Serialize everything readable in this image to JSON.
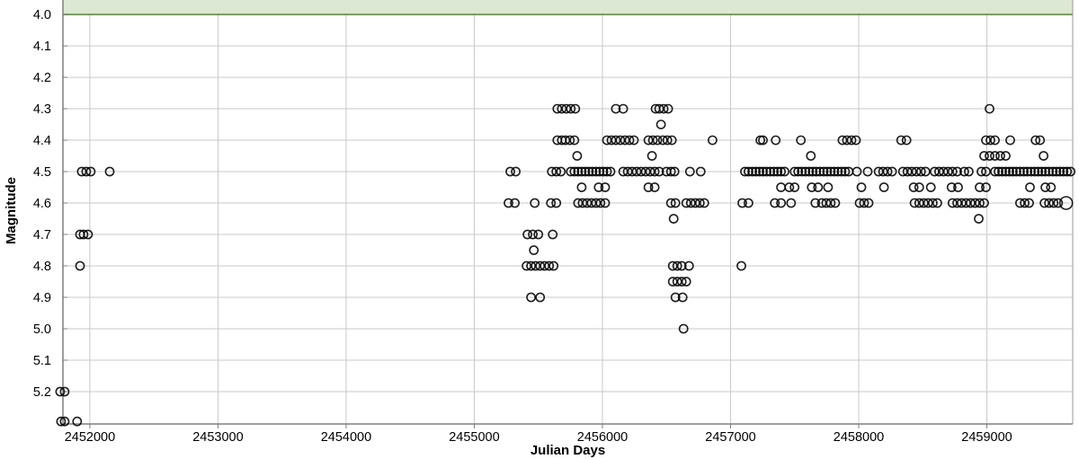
{
  "chart_data": {
    "type": "scatter",
    "title": "",
    "xlabel": "Julian Days",
    "ylabel": "Magnitude",
    "x_ticks": [
      2452000,
      2453000,
      2454000,
      2455000,
      2456000,
      2457000,
      2458000,
      2459000
    ],
    "y_ticks": [
      "4.0",
      "4.1",
      "4.2",
      "4.3",
      "4.4",
      "4.5",
      "4.6",
      "4.7",
      "4.8",
      "4.9",
      "5.0",
      "5.1",
      "5.2"
    ],
    "xlim": [
      2451790,
      2459670
    ],
    "ylim": [
      5.303,
      3.954
    ],
    "grid": true,
    "legend": "none",
    "marker": "open-circle",
    "marker_color": "#000000",
    "grid_color": "#c9c9c9",
    "axis_color": "#7f7f7f",
    "saturation_band": {
      "mag_from": 3.954,
      "mag_to": 4.0,
      "fill": "#dce8d3",
      "edge": "#70a04f"
    },
    "series_by_mag": [
      {
        "mag": 4.3,
        "jd": [
          2455648,
          2455683,
          2455718,
          2455753,
          2455788,
          2456105,
          2456162,
          2456415,
          2456443,
          2456478,
          2456513,
          2459021
        ]
      },
      {
        "mag": 4.35,
        "jd": [
          2456457
        ]
      },
      {
        "mag": 4.4,
        "jd": [
          2455648,
          2455683,
          2455711,
          2455746,
          2455781,
          2456035,
          2456070,
          2456105,
          2456140,
          2456176,
          2456211,
          2456246,
          2456359,
          2456394,
          2456429,
          2456472,
          2456507,
          2456542,
          2456859,
          2457232,
          2457253,
          2457352,
          2457549,
          2457873,
          2457908,
          2457944,
          2457979,
          2458331,
          2458373,
          2458993,
          2459028,
          2459063,
          2459182,
          2459380,
          2459415
        ]
      },
      {
        "mag": 4.45,
        "jd": [
          2455803,
          2456387,
          2457627,
          2458979,
          2459021,
          2459063,
          2459105,
          2459147,
          2459443
        ]
      },
      {
        "mag": 4.5,
        "jd": [
          2451937,
          2451972,
          2452007,
          2452155,
          2455281,
          2455324,
          2455605,
          2455640,
          2455676,
          2455753,
          2455781,
          2455810,
          2455838,
          2455866,
          2455894,
          2455922,
          2455950,
          2455978,
          2456007,
          2456035,
          2456063,
          2456162,
          2456197,
          2456232,
          2456267,
          2456302,
          2456338,
          2456373,
          2456408,
          2456443,
          2456500,
          2456535,
          2456563,
          2456683,
          2456767,
          2457112,
          2457140,
          2457169,
          2457197,
          2457225,
          2457253,
          2457281,
          2457310,
          2457338,
          2457366,
          2457394,
          2457422,
          2457500,
          2457528,
          2457556,
          2457584,
          2457613,
          2457641,
          2457669,
          2457697,
          2457726,
          2457754,
          2457782,
          2457810,
          2457838,
          2457866,
          2457894,
          2457922,
          2457986,
          2458070,
          2458155,
          2458190,
          2458225,
          2458260,
          2458345,
          2458380,
          2458415,
          2458450,
          2458486,
          2458521,
          2458592,
          2458627,
          2458662,
          2458697,
          2458732,
          2458768,
          2458824,
          2458859,
          2458958,
          2458993,
          2459063,
          2459091,
          2459119,
          2459147,
          2459175,
          2459203,
          2459231,
          2459259,
          2459288,
          2459316,
          2459344,
          2459373,
          2459401,
          2459429,
          2459457,
          2459485,
          2459514,
          2459542,
          2459570,
          2459598,
          2459626,
          2459654
        ]
      },
      {
        "mag": 4.55,
        "jd": [
          2455838,
          2455971,
          2456021,
          2456359,
          2456408,
          2457394,
          2457458,
          2457500,
          2457634,
          2457683,
          2457761,
          2458021,
          2458197,
          2458429,
          2458472,
          2458563,
          2458725,
          2458775,
          2458944,
          2458993,
          2459337,
          2459457,
          2459500
        ]
      },
      {
        "mag": 4.6,
        "jd": [
          2455267,
          2455317,
          2455472,
          2455598,
          2455640,
          2455810,
          2455845,
          2455880,
          2455915,
          2455950,
          2455985,
          2456021,
          2456535,
          2456570,
          2456654,
          2456690,
          2456725,
          2456760,
          2456795,
          2457091,
          2457140,
          2457345,
          2457394,
          2457472,
          2457662,
          2457712,
          2457747,
          2457782,
          2457817,
          2458007,
          2458042,
          2458077,
          2458436,
          2458472,
          2458507,
          2458542,
          2458578,
          2458613,
          2458732,
          2458768,
          2458803,
          2458838,
          2458873,
          2458908,
          2458944,
          2458979,
          2459259,
          2459295,
          2459330,
          2459450,
          2459485,
          2459521,
          2459556
        ]
      },
      {
        "mag": 4.65,
        "jd": [
          2456556,
          2458937
        ]
      },
      {
        "mag": 4.7,
        "jd": [
          2451923,
          2451951,
          2451986,
          2455415,
          2455457,
          2455500,
          2455612
        ]
      },
      {
        "mag": 4.75,
        "jd": [
          2455465
        ]
      },
      {
        "mag": 4.8,
        "jd": [
          2451923,
          2455408,
          2455443,
          2455479,
          2455514,
          2455549,
          2455584,
          2455619,
          2456549,
          2456584,
          2456619,
          2456676,
          2457084
        ]
      },
      {
        "mag": 4.85,
        "jd": [
          2456549,
          2456584,
          2456619,
          2456654
        ]
      },
      {
        "mag": 4.9,
        "jd": [
          2455443,
          2455514,
          2456570,
          2456626
        ]
      },
      {
        "mag": 5.0,
        "jd": [
          2456633
        ]
      },
      {
        "mag": 5.2,
        "jd": [
          2451768,
          2451803
        ]
      },
      {
        "mag": 5.295,
        "jd": [
          2451775,
          2451803,
          2451901
        ]
      }
    ],
    "large_points": [
      {
        "jd": 2459619,
        "mag": 4.6
      }
    ]
  }
}
